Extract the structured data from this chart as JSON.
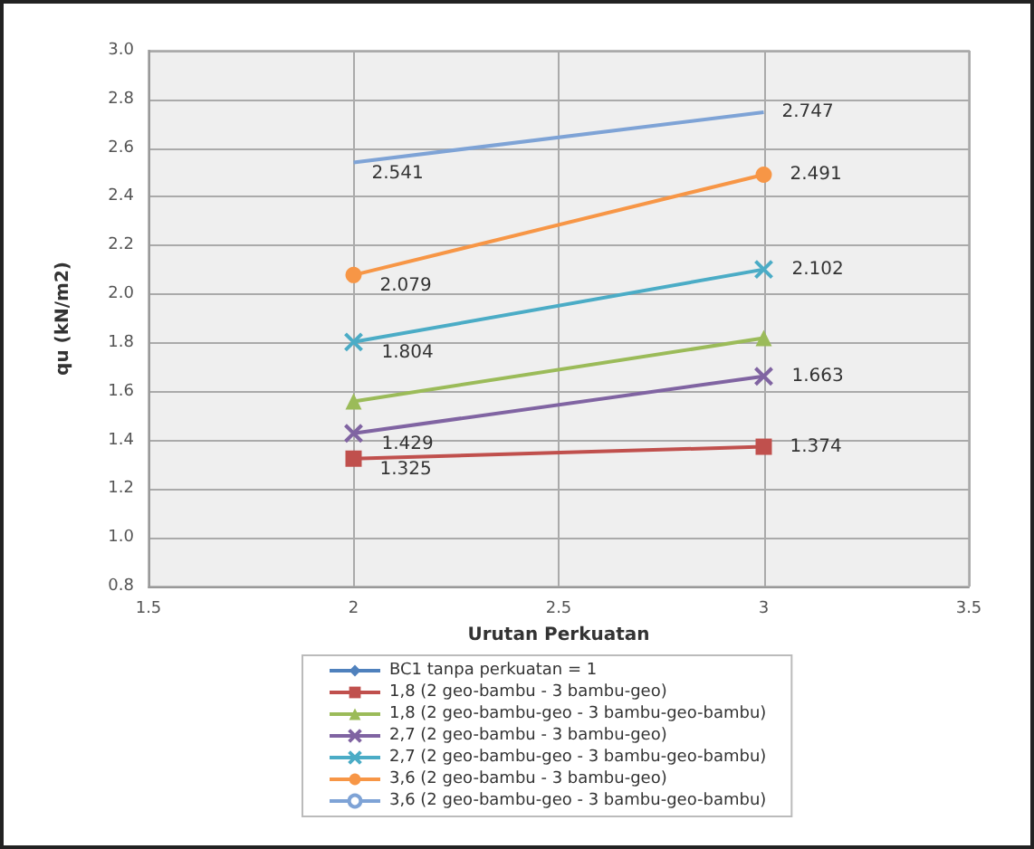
{
  "chart_data": {
    "type": "line",
    "xlabel": "Urutan Perkuatan",
    "ylabel": "qu (kN/m2)",
    "x": [
      2,
      3
    ],
    "xlim": [
      1.5,
      3.5
    ],
    "xticks": [
      1.5,
      2,
      2.5,
      3,
      3.5
    ],
    "ylim": [
      0.8,
      3.0
    ],
    "yticks": [
      {
        "value": 0.8,
        "label": "0.8"
      },
      {
        "value": 1,
        "label": "1.0"
      },
      {
        "value": 1.2,
        "label": "1.2"
      },
      {
        "value": 1.4,
        "label": "1.4"
      },
      {
        "value": 1.6,
        "label": "1.6"
      },
      {
        "value": 1.8,
        "label": "1.8"
      },
      {
        "value": 2,
        "label": "2.0"
      },
      {
        "value": 2.2,
        "label": "2.2"
      },
      {
        "value": 2.4,
        "label": "2.4"
      },
      {
        "value": 2.6,
        "label": "2.6"
      },
      {
        "value": 2.8,
        "label": "2.8"
      },
      {
        "value": 3,
        "label": "3.0"
      }
    ],
    "grid": true,
    "legend": "bottom",
    "series": [
      {
        "name": "BC1 tanpa perkuatan = 1",
        "color": "#4f81bd",
        "marker": "diamond",
        "values": [
          null,
          null
        ]
      },
      {
        "name": "1,8 (2 geo-bambu - 3 bambu-geo)",
        "color": "#c0504d",
        "marker": "square",
        "values": [
          1.325,
          1.374
        ],
        "value_labels": [
          "1.325",
          "1.374"
        ]
      },
      {
        "name": "1,8 (2 geo-bambu-geo - 3 bambu-geo-bambu)",
        "color": "#9bbb59",
        "marker": "triangle",
        "values": [
          1.56,
          1.82
        ]
      },
      {
        "name": "2,7 (2 geo-bambu - 3 bambu-geo)",
        "color": "#8064a2",
        "marker": "cross",
        "values": [
          1.429,
          1.663
        ],
        "value_labels": [
          "1.429",
          "1.663"
        ]
      },
      {
        "name": "2,7 (2 geo-bambu-geo - 3 bambu-geo-bambu)",
        "color": "#4bacc6",
        "marker": "cross",
        "values": [
          1.804,
          2.102
        ],
        "value_labels": [
          "1.804",
          "2.102"
        ]
      },
      {
        "name": "3,6 (2 geo-bambu - 3 bambu-geo)",
        "color": "#f79646",
        "marker": "circle",
        "values": [
          2.079,
          2.491
        ],
        "value_labels": [
          "2.079",
          "2.491"
        ]
      },
      {
        "name": "3,6 (2 geo-bambu-geo - 3 bambu-geo-bambu)",
        "color": "#7ea3d6",
        "marker": "none",
        "values": [
          2.541,
          2.747
        ],
        "value_labels": [
          "2.541",
          "2.747"
        ]
      }
    ]
  }
}
